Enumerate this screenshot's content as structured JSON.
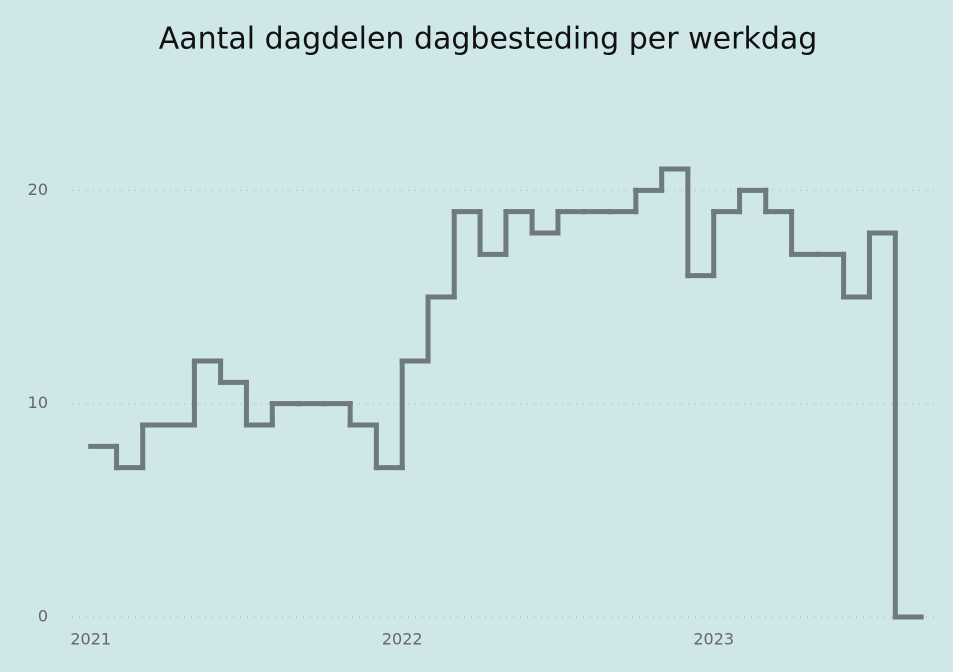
{
  "chart_data": {
    "type": "step",
    "title": "Aantal dagdelen dagbesteding per werkdag",
    "x": [
      2021.0,
      2021.083,
      2021.167,
      2021.25,
      2021.333,
      2021.417,
      2021.5,
      2021.583,
      2021.667,
      2021.75,
      2021.833,
      2021.917,
      2022.0,
      2022.083,
      2022.167,
      2022.25,
      2022.333,
      2022.417,
      2022.5,
      2022.583,
      2022.667,
      2022.75,
      2022.833,
      2022.917,
      2023.0,
      2023.083,
      2023.167,
      2023.25,
      2023.333,
      2023.417,
      2023.5,
      2023.583
    ],
    "values": [
      8,
      7,
      9,
      9,
      12,
      11,
      9,
      10,
      10,
      10,
      9,
      7,
      12,
      15,
      19,
      17,
      19,
      18,
      19,
      19,
      19,
      20,
      21,
      16,
      19,
      20,
      19,
      17,
      17,
      15,
      18,
      0
    ],
    "color": "#6f7a7b",
    "xlim": [
      2020.94,
      2023.72
    ],
    "xticks": [
      2021,
      2022,
      2023
    ],
    "ylim": [
      0,
      24
    ],
    "yticks": [
      0,
      10,
      20
    ],
    "grid": true
  }
}
